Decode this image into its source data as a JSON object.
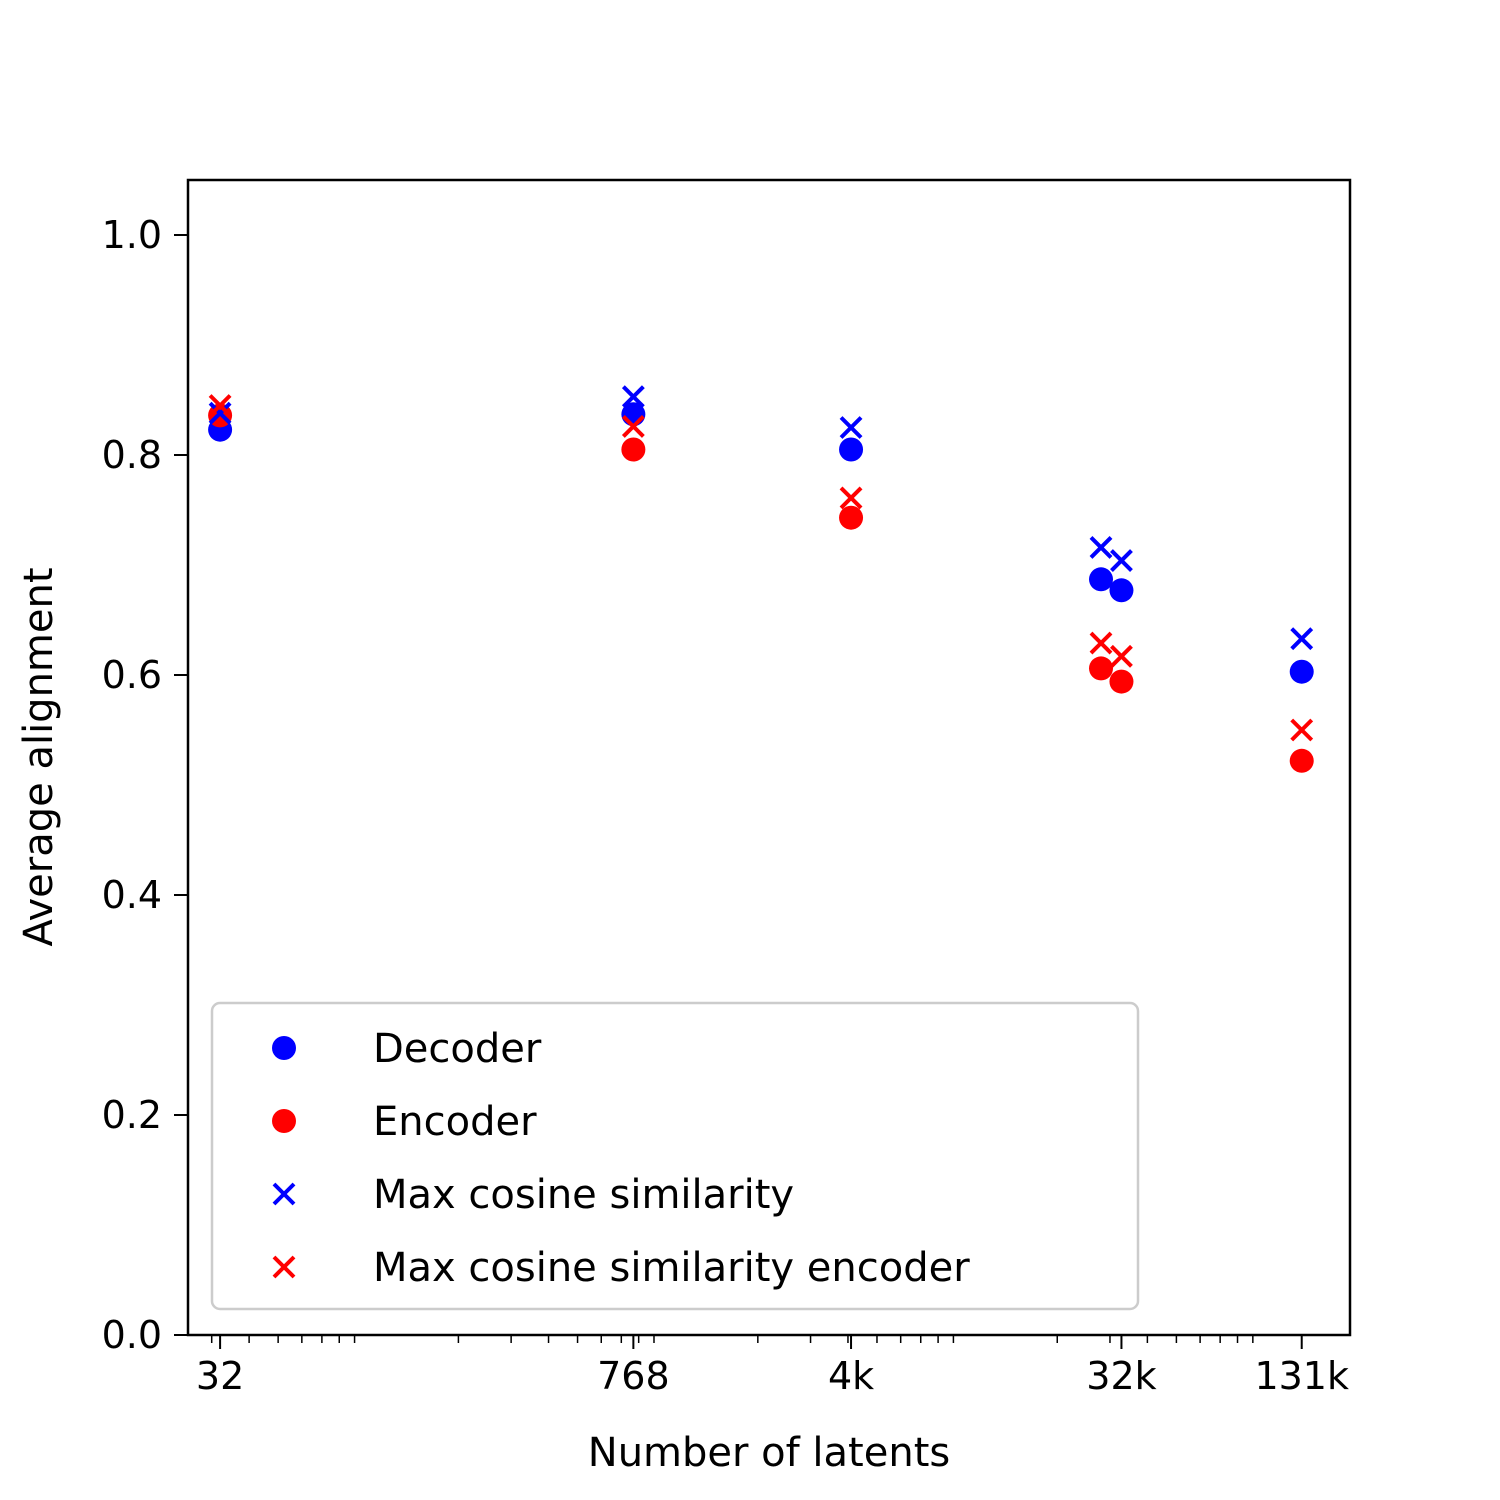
{
  "chart_data": {
    "type": "scatter",
    "xlabel": "Number of latents",
    "ylabel": "Average alignment",
    "xscale": "log",
    "xlim": [
      25,
      190000
    ],
    "ylim": [
      0,
      1.05
    ],
    "x_ticks": [
      {
        "value": 32,
        "label": "32"
      },
      {
        "value": 768,
        "label": "768"
      },
      {
        "value": 4096,
        "label": "4k"
      },
      {
        "value": 32768,
        "label": "32k"
      },
      {
        "value": 131072,
        "label": "131k"
      }
    ],
    "y_ticks": [
      {
        "value": 0.0,
        "label": "0.0"
      },
      {
        "value": 0.2,
        "label": "0.2"
      },
      {
        "value": 0.4,
        "label": "0.4"
      },
      {
        "value": 0.6,
        "label": "0.6"
      },
      {
        "value": 0.8,
        "label": "0.8"
      },
      {
        "value": 1.0,
        "label": "1.0"
      }
    ],
    "grid": false,
    "legend_position": "lower-left",
    "series": [
      {
        "name": "Decoder",
        "marker": "circle",
        "color": "#0000ff",
        "points": [
          {
            "x": 32,
            "y": 0.823
          },
          {
            "x": 768,
            "y": 0.837
          },
          {
            "x": 4096,
            "y": 0.805
          },
          {
            "x": 28000,
            "y": 0.687
          },
          {
            "x": 32768,
            "y": 0.677
          },
          {
            "x": 131072,
            "y": 0.603
          }
        ]
      },
      {
        "name": "Encoder",
        "marker": "circle",
        "color": "#ff0000",
        "points": [
          {
            "x": 32,
            "y": 0.836
          },
          {
            "x": 768,
            "y": 0.805
          },
          {
            "x": 4096,
            "y": 0.743
          },
          {
            "x": 28000,
            "y": 0.606
          },
          {
            "x": 32768,
            "y": 0.594
          },
          {
            "x": 131072,
            "y": 0.522
          }
        ]
      },
      {
        "name": "Max cosine similarity",
        "marker": "x",
        "color": "#0000ff",
        "points": [
          {
            "x": 32,
            "y": 0.838
          },
          {
            "x": 768,
            "y": 0.853
          },
          {
            "x": 4096,
            "y": 0.825
          },
          {
            "x": 28000,
            "y": 0.716
          },
          {
            "x": 32768,
            "y": 0.704
          },
          {
            "x": 131072,
            "y": 0.633
          }
        ]
      },
      {
        "name": "Max cosine similarity encoder",
        "marker": "x",
        "color": "#ff0000",
        "points": [
          {
            "x": 32,
            "y": 0.845
          },
          {
            "x": 768,
            "y": 0.826
          },
          {
            "x": 4096,
            "y": 0.761
          },
          {
            "x": 28000,
            "y": 0.629
          },
          {
            "x": 32768,
            "y": 0.617
          },
          {
            "x": 131072,
            "y": 0.55
          }
        ]
      }
    ]
  }
}
